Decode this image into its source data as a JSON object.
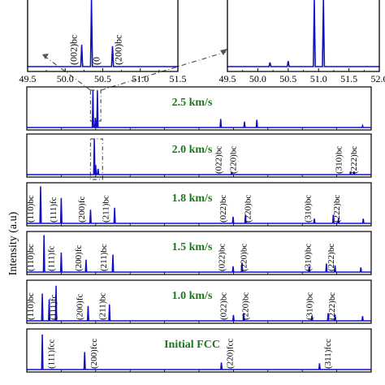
{
  "colors": {
    "trace": "#1010c8",
    "title": "#1a7a1a",
    "frame": "#000000",
    "guide": "#555555"
  },
  "chart_data": [
    {
      "type": "line",
      "id": "inset-left",
      "xlim": [
        49.5,
        51.5
      ],
      "xticks": [
        "49.5",
        "50.0",
        "50.5",
        "51.0",
        "51.5"
      ],
      "peaks": [
        {
          "x": 50.22,
          "h": 0.32,
          "label": "(002)bc"
        },
        {
          "x": 50.35,
          "h": 1.1,
          "label": "(0"
        },
        {
          "x": 50.63,
          "h": 0.3,
          "label": "(200)bc"
        }
      ]
    },
    {
      "type": "line",
      "id": "inset-right",
      "xlim": [
        49.5,
        52.0
      ],
      "xticks": [
        "49.5",
        "50.0",
        "50.5",
        "51.0",
        "51.5",
        "52.0"
      ],
      "peaks": [
        {
          "x": 50.2,
          "h": 0.06
        },
        {
          "x": 50.5,
          "h": 0.08
        },
        {
          "x": 50.93,
          "h": 1.2
        },
        {
          "x": 51.08,
          "h": 1.2
        }
      ]
    },
    {
      "type": "line",
      "id": "stack",
      "ylabel": "Intensity (a.u)",
      "xlim": [
        0,
        1
      ],
      "panels": [
        {
          "title": "2.5 km/s",
          "peaks": [
            {
              "x": 0.192,
              "h": 0.95
            },
            {
              "x": 0.205,
              "h": 0.95
            },
            {
              "x": 0.199,
              "h": 0.25
            },
            {
              "x": 0.563,
              "h": 0.22
            },
            {
              "x": 0.632,
              "h": 0.15
            },
            {
              "x": 0.668,
              "h": 0.2
            },
            {
              "x": 0.975,
              "h": 0.05
            }
          ],
          "labels": []
        },
        {
          "title": "2.0 km/s",
          "peaks": [
            {
              "x": 0.196,
              "h": 0.92
            },
            {
              "x": 0.2,
              "h": 0.25
            },
            {
              "x": 0.207,
              "h": 0.15
            },
            {
              "x": 0.595,
              "h": 0.07
            },
            {
              "x": 0.94,
              "h": 0.08
            },
            {
              "x": 0.95,
              "h": 0.08
            }
          ],
          "labels": [
            {
              "text": "(022)bc",
              "x": 0.555
            },
            {
              "text": "(220)bc",
              "x": 0.598
            },
            {
              "text": "(310)bc",
              "x": 0.905
            },
            {
              "text": "(222)bc",
              "x": 0.948
            }
          ]
        },
        {
          "title": "1.8 km/s",
          "peaks": [
            {
              "x": 0.04,
              "h": 0.95
            },
            {
              "x": 0.1,
              "h": 0.65
            },
            {
              "x": 0.185,
              "h": 0.35
            },
            {
              "x": 0.255,
              "h": 0.4
            },
            {
              "x": 0.599,
              "h": 0.17
            },
            {
              "x": 0.635,
              "h": 0.22
            },
            {
              "x": 0.835,
              "h": 0.12
            },
            {
              "x": 0.89,
              "h": 0.22
            },
            {
              "x": 0.905,
              "h": 0.12
            },
            {
              "x": 0.977,
              "h": 0.12
            }
          ],
          "labels": [
            {
              "text": "(110)bc",
              "x": 0.01
            },
            {
              "text": "(111)fc",
              "x": 0.075
            },
            {
              "text": "(200)fc",
              "x": 0.158
            },
            {
              "text": "(211)bc",
              "x": 0.228
            },
            {
              "text": "(022)bc",
              "x": 0.568
            },
            {
              "text": "(220)bc",
              "x": 0.64
            },
            {
              "text": "(310)bc",
              "x": 0.815
            },
            {
              "text": "(222)bc",
              "x": 0.898
            }
          ]
        },
        {
          "title": "1.5 km/s",
          "peaks": [
            {
              "x": 0.05,
              "h": 0.95
            },
            {
              "x": 0.1,
              "h": 0.5
            },
            {
              "x": 0.172,
              "h": 0.32
            },
            {
              "x": 0.25,
              "h": 0.45
            },
            {
              "x": 0.599,
              "h": 0.15
            },
            {
              "x": 0.625,
              "h": 0.24
            },
            {
              "x": 0.82,
              "h": 0.15
            },
            {
              "x": 0.87,
              "h": 0.22
            },
            {
              "x": 0.895,
              "h": 0.17
            },
            {
              "x": 0.97,
              "h": 0.12
            }
          ],
          "labels": [
            {
              "text": "(110)bc",
              "x": 0.01
            },
            {
              "text": "(111)fc",
              "x": 0.07
            },
            {
              "text": "(200)fc",
              "x": 0.148
            },
            {
              "text": "(211)bc",
              "x": 0.222
            },
            {
              "text": "(022)bc",
              "x": 0.565
            },
            {
              "text": "(220)bc",
              "x": 0.628
            },
            {
              "text": "(310)bc",
              "x": 0.815
            },
            {
              "text": "(222)bc",
              "x": 0.882
            }
          ]
        },
        {
          "title": "1.0 km/s",
          "peaks": [
            {
              "x": 0.045,
              "h": 0.7
            },
            {
              "x": 0.065,
              "h": 0.55
            },
            {
              "x": 0.085,
              "h": 0.9
            },
            {
              "x": 0.178,
              "h": 0.38
            },
            {
              "x": 0.24,
              "h": 0.42
            },
            {
              "x": 0.6,
              "h": 0.15
            },
            {
              "x": 0.63,
              "h": 0.2
            },
            {
              "x": 0.828,
              "h": 0.13
            },
            {
              "x": 0.875,
              "h": 0.2
            },
            {
              "x": 0.895,
              "h": 0.16
            },
            {
              "x": 0.975,
              "h": 0.12
            }
          ],
          "labels": [
            {
              "text": "(110)bc",
              "x": 0.01
            },
            {
              "text": "(111)fc",
              "x": 0.075
            },
            {
              "text": "(200)fc",
              "x": 0.152
            },
            {
              "text": "(211)bc",
              "x": 0.218
            },
            {
              "text": "(022)bc",
              "x": 0.57
            },
            {
              "text": "(220)bc",
              "x": 0.633
            },
            {
              "text": "(310)bc",
              "x": 0.82
            },
            {
              "text": "(222)bc",
              "x": 0.885
            }
          ]
        },
        {
          "title": "Initial FCC",
          "peaks": [
            {
              "x": 0.045,
              "h": 0.9
            },
            {
              "x": 0.168,
              "h": 0.45
            },
            {
              "x": 0.565,
              "h": 0.18
            },
            {
              "x": 0.85,
              "h": 0.16
            }
          ],
          "labels": [
            {
              "text": "(111)fcc",
              "x": 0.07
            },
            {
              "text": "(200)fcc",
              "x": 0.193
            },
            {
              "text": "(220)fcc",
              "x": 0.588
            },
            {
              "text": "(311)fcc",
              "x": 0.873
            }
          ]
        }
      ]
    }
  ]
}
